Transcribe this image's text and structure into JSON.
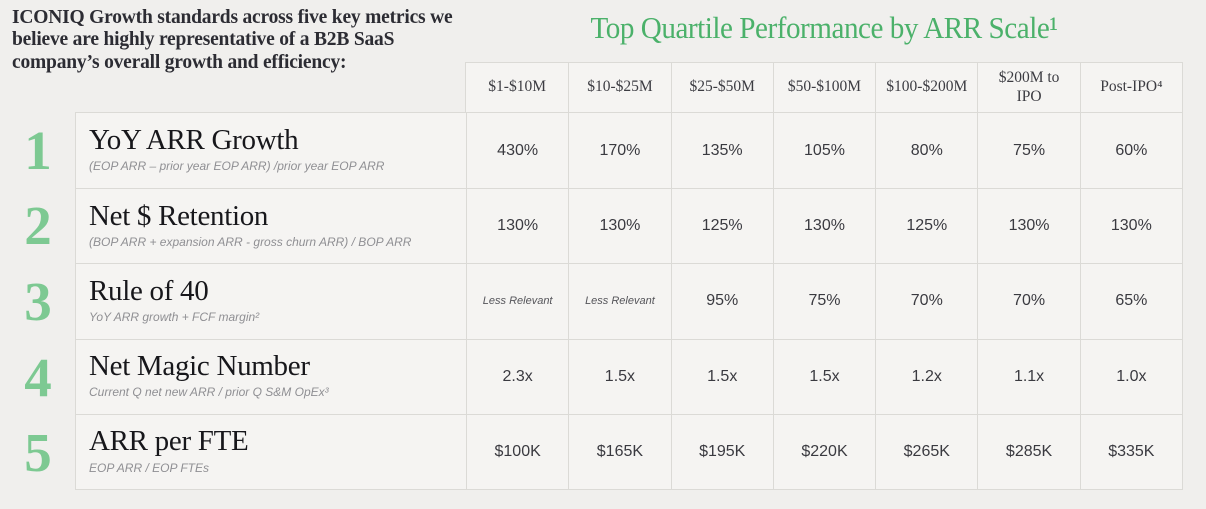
{
  "page": {
    "intro": "ICONIQ Growth standards across five key metrics we believe are highly representative of a B2B SaaS company’s overall growth and efficiency:"
  },
  "colors": {
    "title_green": "#4bb16a",
    "numeral_green": "#7dc992",
    "page_background": "#f0efed",
    "cell_background": "#f5f4f2",
    "border": "#dbdad6"
  },
  "chart_data": {
    "type": "table",
    "title": "Top Quartile Performance by ARR Scale¹",
    "categories": [
      "$1-$10M",
      "$10-$25M",
      "$25-$50M",
      "$50-$100M",
      "$100-$200M",
      "$200M to IPO",
      "Post-IPO⁴"
    ],
    "series": [
      {
        "num": "1",
        "name": "YoY ARR Growth",
        "formula": "(EOP ARR – prior year EOP ARR) /prior year EOP ARR",
        "values": [
          "430%",
          "170%",
          "135%",
          "105%",
          "80%",
          "75%",
          "60%"
        ]
      },
      {
        "num": "2",
        "name": "Net $ Retention",
        "formula": "(BOP ARR + expansion ARR - gross churn ARR) / BOP ARR",
        "values": [
          "130%",
          "130%",
          "125%",
          "130%",
          "125%",
          "130%",
          "130%"
        ]
      },
      {
        "num": "3",
        "name": "Rule of 40",
        "formula": "YoY ARR growth + FCF margin²",
        "values": [
          "Less Relevant",
          "Less Relevant",
          "95%",
          "75%",
          "70%",
          "70%",
          "65%"
        ]
      },
      {
        "num": "4",
        "name": "Net Magic Number",
        "formula": "Current Q net new ARR / prior Q S&M OpEx³",
        "values": [
          "2.3x",
          "1.5x",
          "1.5x",
          "1.5x",
          "1.2x",
          "1.1x",
          "1.0x"
        ]
      },
      {
        "num": "5",
        "name": "ARR per FTE",
        "formula": "EOP ARR / EOP FTEs",
        "values": [
          "$100K",
          "$165K",
          "$195K",
          "$220K",
          "$265K",
          "$285K",
          "$335K"
        ]
      }
    ]
  }
}
